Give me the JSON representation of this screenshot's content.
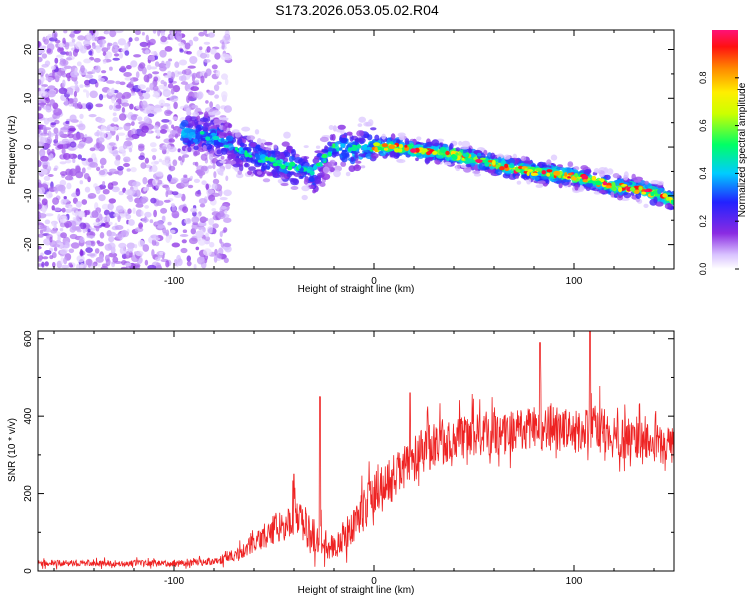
{
  "page": {
    "title": "S173.2026.053.05.02.R04"
  },
  "chart_data": [
    {
      "type": "heatmap",
      "title": "S173.2026.053.05.02.R04",
      "xlabel": "Height of straight line (km)",
      "ylabel": "Frequency (Hz)",
      "xlim": [
        -168,
        150
      ],
      "ylim": [
        -25,
        24
      ],
      "x_ticks": [
        -100,
        0,
        100
      ],
      "x_tick_labels": [
        "-100",
        "0",
        "100"
      ],
      "y_ticks": [
        -20,
        -10,
        0,
        10,
        20
      ],
      "y_tick_labels": [
        "-20",
        "-10",
        "0",
        "10",
        "20"
      ],
      "colorbar": {
        "label": "Normalized spectral amplitude",
        "range": [
          0,
          1
        ],
        "ticks": [
          0.0,
          0.2,
          0.4,
          0.6,
          0.8
        ],
        "tick_labels": [
          "0.0",
          "0.2",
          "0.4",
          "0.6",
          "0.8"
        ],
        "colormap": "rainbow: white, violet, blue, cyan, green, yellow, orange, red, magenta"
      },
      "ridge": {
        "description": "Dominant frequency ridge vs height",
        "x": [
          -95,
          -80,
          -70,
          -60,
          -50,
          -40,
          -30,
          -20,
          -10,
          0,
          10,
          20,
          30,
          40,
          50,
          60,
          70,
          80,
          90,
          100,
          110,
          120,
          130,
          140,
          150
        ],
        "y": [
          3,
          2,
          0,
          -2,
          -3,
          -4,
          -5,
          0,
          -0.5,
          0,
          0,
          -0.5,
          -1,
          -1.5,
          -2.5,
          -3.5,
          -4.5,
          -5,
          -5.5,
          -6,
          -7,
          -8,
          -8.5,
          -9.5,
          -11
        ]
      }
    },
    {
      "type": "line",
      "xlabel": "Height of straight line (km)",
      "ylabel": "SNR (10 * v/v)",
      "xlim": [
        -168,
        150
      ],
      "ylim": [
        0,
        620
      ],
      "x_ticks": [
        -100,
        0,
        100
      ],
      "x_tick_labels": [
        "-100",
        "0",
        "100"
      ],
      "y_ticks": [
        0,
        200,
        400,
        600
      ],
      "y_tick_labels": [
        "0",
        "200",
        "400",
        "600"
      ],
      "series": [
        {
          "name": "SNR",
          "color": "#ee2222",
          "envelope_x": [
            -168,
            -100,
            -80,
            -70,
            -60,
            -50,
            -40,
            -30,
            -20,
            -10,
            0,
            10,
            20,
            30,
            40,
            50,
            60,
            70,
            80,
            90,
            100,
            110,
            120,
            130,
            140,
            150
          ],
          "envelope_mean": [
            20,
            20,
            25,
            40,
            70,
            110,
            140,
            90,
            60,
            120,
            200,
            240,
            290,
            330,
            340,
            350,
            350,
            360,
            370,
            370,
            360,
            370,
            350,
            340,
            330,
            320
          ],
          "envelope_noise": [
            8,
            8,
            10,
            15,
            25,
            40,
            50,
            45,
            35,
            50,
            60,
            60,
            60,
            60,
            55,
            55,
            55,
            55,
            60,
            60,
            55,
            60,
            55,
            55,
            50,
            50
          ],
          "peaks": [
            {
              "x": -40,
              "y": 250
            },
            {
              "x": -27,
              "y": 450
            },
            {
              "x": 18,
              "y": 460
            },
            {
              "x": 83,
              "y": 590
            },
            {
              "x": 108,
              "y": 620
            }
          ]
        }
      ]
    }
  ]
}
